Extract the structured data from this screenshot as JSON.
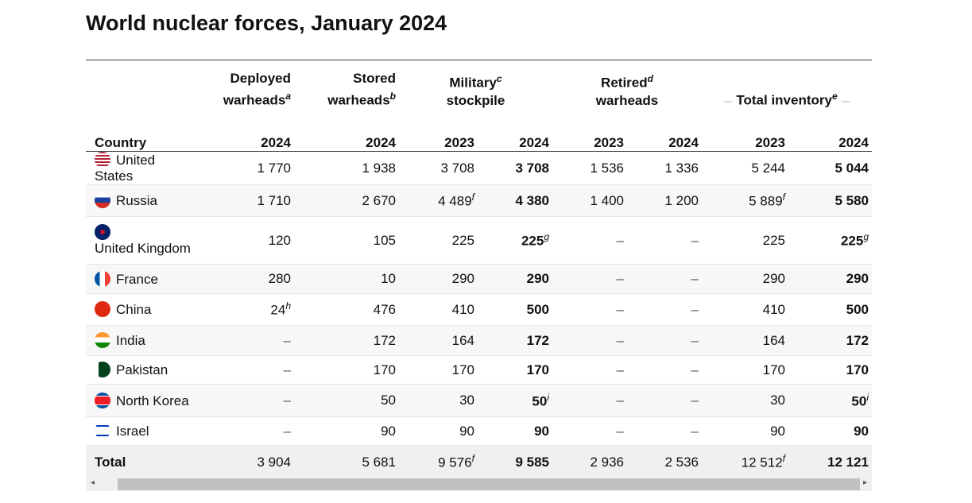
{
  "title": "World nuclear forces, January 2024",
  "headers": {
    "deployed": "Deployed",
    "deployed2": "warheads",
    "deployed_note": "a",
    "stored": "Stored",
    "stored2": "warheads",
    "stored_note": "b",
    "military": "Military",
    "military2": "stockpile",
    "military_note": "c",
    "retired": "Retired",
    "retired2": "warheads",
    "retired_note": "d",
    "total": "Total inventory",
    "total_note": "e",
    "country": "Country",
    "y2023": "2023",
    "y2024": "2024"
  },
  "rows": [
    {
      "country": "United States",
      "flag": "us",
      "deployed": "1 770",
      "stored": "1 938",
      "mil2023": "3 708",
      "mil2024": "3 708",
      "ret2023": "1 536",
      "ret2024": "1 336",
      "tot2023": "5 244",
      "tot2024": "5 044"
    },
    {
      "country": "Russia",
      "flag": "ru",
      "deployed": "1 710",
      "stored": "2 670",
      "mil2023": "4 489",
      "mil2023_note": "f",
      "mil2024": "4 380",
      "ret2023": "1 400",
      "ret2024": "1 200",
      "tot2023": "5 889",
      "tot2023_note": "f",
      "tot2024": "5 580"
    },
    {
      "country": "United Kingdom",
      "flag": "gb",
      "deployed": "120",
      "stored": "105",
      "mil2023": "225",
      "mil2024": "225",
      "mil2024_note": "g",
      "ret2023": "–",
      "ret2024": "–",
      "tot2023": "225",
      "tot2024": "225",
      "tot2024_note": "g"
    },
    {
      "country": "France",
      "flag": "fr",
      "deployed": "280",
      "stored": "10",
      "mil2023": "290",
      "mil2024": "290",
      "ret2023": "–",
      "ret2024": "–",
      "tot2023": "290",
      "tot2024": "290"
    },
    {
      "country": "China",
      "flag": "cn",
      "deployed": "24",
      "deployed_note": "h",
      "stored": "476",
      "mil2023": "410",
      "mil2024": "500",
      "ret2023": "–",
      "ret2024": "–",
      "tot2023": "410",
      "tot2024": "500"
    },
    {
      "country": "India",
      "flag": "in",
      "deployed": "–",
      "stored": "172",
      "mil2023": "164",
      "mil2024": "172",
      "ret2023": "–",
      "ret2024": "–",
      "tot2023": "164",
      "tot2024": "172"
    },
    {
      "country": "Pakistan",
      "flag": "pk",
      "deployed": "–",
      "stored": "170",
      "mil2023": "170",
      "mil2024": "170",
      "ret2023": "–",
      "ret2024": "–",
      "tot2023": "170",
      "tot2024": "170"
    },
    {
      "country": "North Korea",
      "flag": "kp",
      "deployed": "–",
      "stored": "50",
      "mil2023": "30",
      "mil2024": "50",
      "mil2024_note": "i",
      "ret2023": "–",
      "ret2024": "–",
      "tot2023": "30",
      "tot2024": "50",
      "tot2024_note": "i"
    },
    {
      "country": "Israel",
      "flag": "il",
      "deployed": "–",
      "stored": "90",
      "mil2023": "90",
      "mil2024": "90",
      "ret2023": "–",
      "ret2024": "–",
      "tot2023": "90",
      "tot2024": "90"
    }
  ],
  "total": {
    "label": "Total",
    "deployed": "3 904",
    "stored": "5 681",
    "mil2023": "9 576",
    "mil2023_note": "f",
    "mil2024": "9 585",
    "ret2023": "2 936",
    "ret2024": "2 536",
    "tot2023": "12 512",
    "tot2023_note": "f",
    "tot2024": "12 121"
  },
  "scrollbar": {
    "left": "◂",
    "right": "▸"
  }
}
